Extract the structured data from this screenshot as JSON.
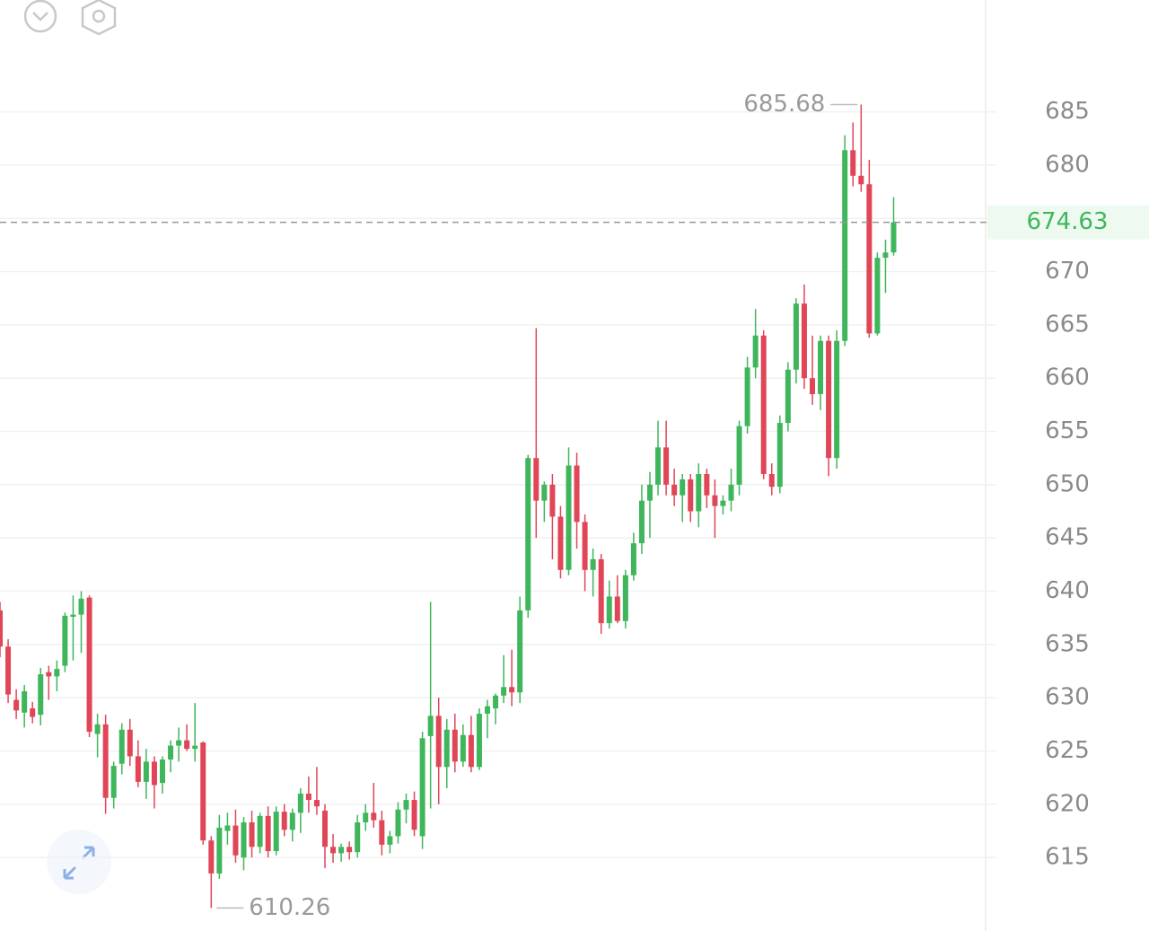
{
  "chart_data": {
    "type": "candlestick",
    "up_color": "#3fb65c",
    "down_color": "#e04658",
    "ylim": [
      608.1,
      695.5
    ],
    "yticks": [
      615,
      620,
      625,
      630,
      635,
      640,
      645,
      650,
      655,
      660,
      665,
      670,
      675,
      680,
      685
    ],
    "grid": true,
    "open": [
      638.2,
      634.8,
      629.8,
      628.6,
      629.0,
      628.4,
      632.4,
      632.0,
      633.0,
      637.6,
      637.8,
      639.4,
      626.6,
      627.5,
      620.6,
      623.8,
      627.0,
      624.5,
      622.1,
      624.0,
      622.0,
      624.2,
      625.5,
      626.0,
      625.2,
      625.8,
      616.6,
      613.5,
      617.5,
      618.0,
      615.0,
      618.3,
      616.0,
      618.9,
      615.6,
      619.3,
      617.6,
      619.2,
      621.0,
      620.4,
      619.4,
      616.0,
      615.4,
      616.0,
      615.5,
      618.3,
      619.2,
      618.5,
      616.2,
      617.0,
      619.5,
      620.4,
      617.0,
      626.4,
      628.3,
      623.5,
      627.0,
      624.0,
      626.5,
      623.5,
      628.5,
      629.0,
      630.2,
      631.0,
      630.5,
      638.2,
      652.5,
      648.5,
      650.0,
      647.0,
      642.0,
      651.8,
      646.5,
      642.0,
      643.0,
      637.0,
      639.5,
      637.2,
      641.5,
      644.5,
      648.5,
      650.0,
      653.5,
      650.0,
      649.0,
      650.5,
      647.5,
      651.0,
      649.0,
      648.0,
      648.5,
      650.0,
      655.5,
      661.0,
      664.0,
      651.0,
      649.8,
      655.8,
      660.8,
      667.0,
      660.0,
      658.5,
      663.5,
      652.5,
      663.5,
      681.4,
      679.0,
      678.2,
      664.2,
      671.3,
      671.8
    ],
    "high": [
      639.0,
      635.5,
      630.8,
      631.2,
      629.6,
      632.8,
      633.0,
      633.5,
      638.0,
      639.6,
      640.0,
      639.6,
      628.5,
      628.4,
      624.0,
      627.6,
      628.0,
      626.0,
      625.2,
      624.5,
      624.5,
      626.0,
      627.2,
      627.5,
      629.5,
      625.9,
      617.0,
      619.0,
      619.2,
      619.5,
      618.8,
      619.4,
      619.2,
      619.8,
      619.8,
      620.0,
      619.6,
      621.5,
      622.6,
      623.5,
      620.0,
      617.2,
      616.3,
      616.5,
      619.0,
      620.0,
      622.0,
      619.4,
      617.5,
      620.2,
      621.0,
      621.2,
      626.8,
      639.0,
      630.0,
      628.0,
      628.5,
      627.5,
      628.3,
      629.0,
      629.8,
      630.4,
      634.0,
      634.5,
      639.5,
      652.8,
      664.7,
      650.3,
      651.0,
      648.0,
      653.5,
      653.0,
      647.2,
      644.0,
      643.5,
      641.0,
      641.5,
      642.0,
      645.5,
      650.0,
      651.2,
      656.0,
      656.0,
      651.5,
      651.0,
      651.0,
      652.0,
      651.5,
      650.5,
      649.0,
      651.5,
      656.0,
      662.0,
      666.5,
      664.5,
      652.0,
      656.5,
      661.5,
      667.5,
      668.8,
      664.0,
      664.0,
      664.0,
      664.5,
      682.8,
      684.0,
      685.68,
      680.5,
      671.8,
      673.0,
      677.0
    ],
    "low": [
      633.8,
      629.5,
      628.0,
      627.2,
      627.6,
      627.4,
      629.8,
      630.6,
      632.4,
      633.5,
      634.2,
      626.3,
      624.4,
      619.1,
      619.6,
      622.8,
      623.6,
      621.6,
      620.5,
      619.6,
      621.0,
      623.0,
      624.0,
      625.0,
      624.0,
      616.2,
      610.26,
      613.0,
      616.2,
      614.5,
      613.8,
      615.0,
      615.4,
      615.0,
      615.2,
      617.0,
      616.5,
      617.3,
      619.2,
      619.0,
      614.0,
      614.5,
      614.6,
      614.8,
      615.0,
      617.5,
      617.8,
      615.2,
      615.4,
      616.3,
      618.2,
      617.0,
      615.8,
      619.6,
      620.0,
      621.5,
      623.0,
      623.5,
      623.0,
      623.2,
      626.2,
      627.5,
      629.5,
      629.2,
      629.5,
      637.5,
      645.0,
      646.5,
      643.0,
      641.2,
      641.5,
      644.0,
      640.0,
      639.5,
      636.0,
      636.5,
      637.0,
      636.5,
      641.0,
      643.5,
      645.0,
      649.0,
      649.0,
      648.0,
      646.5,
      646.5,
      646.0,
      647.8,
      645.0,
      647.2,
      647.5,
      649.0,
      654.8,
      660.0,
      650.5,
      649.0,
      649.2,
      655.0,
      659.5,
      659.0,
      657.5,
      657.0,
      650.8,
      651.5,
      663.0,
      678.0,
      677.5,
      663.8,
      664.0,
      668.0,
      671.5
    ],
    "close": [
      634.8,
      630.3,
      628.8,
      630.6,
      628.2,
      632.2,
      632.0,
      632.7,
      637.7,
      637.8,
      639.3,
      626.8,
      627.5,
      620.6,
      623.6,
      627.0,
      624.5,
      622.1,
      624.0,
      621.8,
      624.2,
      625.5,
      626.0,
      625.2,
      625.5,
      616.6,
      613.5,
      617.8,
      618.0,
      615.2,
      618.3,
      616.0,
      618.9,
      615.6,
      619.3,
      617.6,
      619.2,
      621.0,
      620.4,
      619.8,
      616.0,
      615.4,
      616.0,
      615.5,
      618.3,
      619.2,
      618.5,
      616.2,
      617.0,
      619.5,
      620.4,
      617.6,
      626.2,
      628.3,
      623.5,
      627.0,
      624.0,
      626.5,
      623.5,
      628.5,
      629.2,
      630.2,
      631.0,
      630.5,
      638.2,
      652.5,
      648.5,
      650.0,
      647.0,
      642.0,
      651.8,
      646.5,
      642.0,
      643.0,
      637.0,
      639.5,
      637.2,
      641.5,
      644.5,
      648.5,
      650.0,
      653.5,
      650.0,
      649.0,
      650.5,
      647.5,
      651.0,
      649.0,
      648.0,
      648.5,
      650.0,
      655.5,
      661.0,
      664.0,
      651.0,
      649.8,
      655.8,
      660.8,
      667.0,
      660.0,
      658.5,
      663.5,
      652.5,
      663.5,
      681.4,
      679.0,
      678.2,
      664.2,
      671.3,
      671.8,
      674.63
    ]
  }
}
